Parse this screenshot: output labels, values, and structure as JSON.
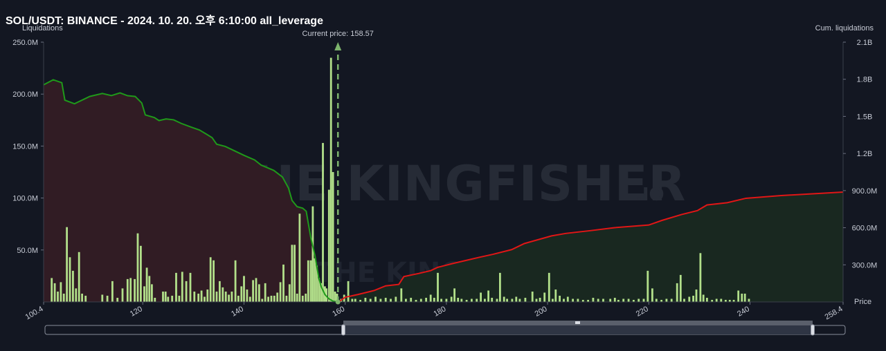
{
  "title": "SOL/USDT: BINANCE - 2024. 10. 20. 오후 6:10:00 all_leverage",
  "watermark": {
    "text": "THE KINGFISHER",
    "suffix": ".IO"
  },
  "chart_data": {
    "type": "bar",
    "left_axis_title": "Liquidations",
    "right_axis_title": "Cum. liquidations",
    "x_axis_title": "Price",
    "current_price_label": "Current price: 158.57",
    "current_price": 158.57,
    "xlim": [
      100.4,
      258.4
    ],
    "ylim_left": [
      0,
      250
    ],
    "ylim_right": [
      0,
      2100
    ],
    "left_ticks": [
      {
        "v": 50,
        "label": "50.0M"
      },
      {
        "v": 100,
        "label": "100.0M"
      },
      {
        "v": 150,
        "label": "150.0M"
      },
      {
        "v": 200,
        "label": "200.0M"
      },
      {
        "v": 250,
        "label": "250.0M"
      }
    ],
    "right_ticks": [
      {
        "v": 300,
        "label": "300.0M"
      },
      {
        "v": 600,
        "label": "600.0M"
      },
      {
        "v": 900,
        "label": "900.0M"
      },
      {
        "v": 1200,
        "label": "1.2B"
      },
      {
        "v": 1500,
        "label": "1.5B"
      },
      {
        "v": 1800,
        "label": "1.8B"
      },
      {
        "v": 2100,
        "label": "2.1B"
      }
    ],
    "x_ticks": [
      {
        "v": 100.4,
        "label": "100.4"
      },
      {
        "v": 120,
        "label": "120"
      },
      {
        "v": 140,
        "label": "140"
      },
      {
        "v": 160,
        "label": "160"
      },
      {
        "v": 180,
        "label": "180"
      },
      {
        "v": 200,
        "label": "200"
      },
      {
        "v": 220,
        "label": "220"
      },
      {
        "v": 240,
        "label": "240"
      },
      {
        "v": 258.4,
        "label": "258.4"
      }
    ],
    "bars": [
      [
        102,
        23
      ],
      [
        102.6,
        18
      ],
      [
        103.2,
        10
      ],
      [
        103.8,
        19
      ],
      [
        104.4,
        8
      ],
      [
        105,
        72
      ],
      [
        105.6,
        43
      ],
      [
        106.2,
        30
      ],
      [
        106.8,
        13
      ],
      [
        107.4,
        48
      ],
      [
        108,
        8
      ],
      [
        108.7,
        6
      ],
      [
        112,
        7
      ],
      [
        113,
        6
      ],
      [
        114,
        20
      ],
      [
        115,
        4
      ],
      [
        116,
        13
      ],
      [
        117,
        22
      ],
      [
        117.6,
        23
      ],
      [
        118.4,
        22
      ],
      [
        119,
        66
      ],
      [
        119.6,
        54
      ],
      [
        120.3,
        15
      ],
      [
        120.8,
        33
      ],
      [
        121.3,
        25
      ],
      [
        121.8,
        17
      ],
      [
        122.4,
        4
      ],
      [
        124,
        10
      ],
      [
        124.5,
        10
      ],
      [
        125,
        5
      ],
      [
        125.8,
        6
      ],
      [
        126.6,
        28
      ],
      [
        127.2,
        6
      ],
      [
        127.8,
        29
      ],
      [
        128.6,
        20
      ],
      [
        129.4,
        28
      ],
      [
        130.2,
        10
      ],
      [
        131,
        8
      ],
      [
        131.6,
        11
      ],
      [
        132.2,
        5
      ],
      [
        132.8,
        12
      ],
      [
        133.4,
        43
      ],
      [
        134,
        40
      ],
      [
        134.6,
        10
      ],
      [
        135.2,
        20
      ],
      [
        135.8,
        14
      ],
      [
        136.4,
        10
      ],
      [
        137,
        7
      ],
      [
        137.6,
        10
      ],
      [
        138.3,
        40
      ],
      [
        138.9,
        6
      ],
      [
        139.5,
        15
      ],
      [
        140,
        25
      ],
      [
        140.6,
        12
      ],
      [
        141.2,
        5
      ],
      [
        141.8,
        21
      ],
      [
        142.4,
        23
      ],
      [
        143,
        17
      ],
      [
        143.6,
        3
      ],
      [
        144.2,
        18
      ],
      [
        144.8,
        5
      ],
      [
        145.4,
        6
      ],
      [
        146,
        6
      ],
      [
        146.6,
        9
      ],
      [
        147.2,
        19
      ],
      [
        147.8,
        36
      ],
      [
        148.4,
        6
      ],
      [
        149,
        17
      ],
      [
        149.5,
        55
      ],
      [
        150,
        55
      ],
      [
        150.5,
        8
      ],
      [
        151,
        85
      ],
      [
        151.6,
        6
      ],
      [
        152.2,
        8
      ],
      [
        152.7,
        40
      ],
      [
        153.2,
        40
      ],
      [
        153.6,
        92
      ],
      [
        154,
        42
      ],
      [
        154.4,
        35
      ],
      [
        154.8,
        23
      ],
      [
        155.2,
        18
      ],
      [
        155.6,
        153
      ],
      [
        156,
        15
      ],
      [
        156.3,
        13
      ],
      [
        156.8,
        108
      ],
      [
        157.2,
        235
      ],
      [
        157.6,
        125
      ],
      [
        158,
        10
      ],
      [
        158.4,
        8
      ],
      [
        159.2,
        3
      ],
      [
        159.8,
        7
      ],
      [
        160.6,
        20
      ],
      [
        161.4,
        3
      ],
      [
        162,
        3
      ],
      [
        163,
        2
      ],
      [
        164,
        4
      ],
      [
        165,
        3
      ],
      [
        166,
        5
      ],
      [
        167,
        3
      ],
      [
        168,
        4
      ],
      [
        169,
        3
      ],
      [
        170,
        5
      ],
      [
        171.1,
        13
      ],
      [
        172,
        3
      ],
      [
        173,
        4
      ],
      [
        174,
        2
      ],
      [
        175,
        3
      ],
      [
        176,
        4
      ],
      [
        176.9,
        7
      ],
      [
        177.6,
        4
      ],
      [
        178.3,
        28
      ],
      [
        179,
        3
      ],
      [
        180,
        3
      ],
      [
        181,
        5
      ],
      [
        181.6,
        13
      ],
      [
        182.3,
        4
      ],
      [
        183,
        3
      ],
      [
        184,
        2
      ],
      [
        185,
        3
      ],
      [
        186,
        3
      ],
      [
        186.8,
        9
      ],
      [
        187.6,
        3
      ],
      [
        188.3,
        11
      ],
      [
        189,
        4
      ],
      [
        190,
        3
      ],
      [
        190.6,
        28
      ],
      [
        191.4,
        5
      ],
      [
        192,
        3
      ],
      [
        193,
        3
      ],
      [
        193.8,
        5
      ],
      [
        194.5,
        3
      ],
      [
        195.6,
        4
      ],
      [
        197,
        10
      ],
      [
        197.8,
        3
      ],
      [
        198.5,
        4
      ],
      [
        199.4,
        9
      ],
      [
        200.3,
        28
      ],
      [
        201,
        3
      ],
      [
        201.6,
        12
      ],
      [
        202.4,
        6
      ],
      [
        203.2,
        3
      ],
      [
        204,
        5
      ],
      [
        205,
        3
      ],
      [
        206,
        3
      ],
      [
        207,
        2
      ],
      [
        208,
        2
      ],
      [
        209,
        4
      ],
      [
        210,
        3
      ],
      [
        211,
        3
      ],
      [
        212.4,
        3
      ],
      [
        213.3,
        4
      ],
      [
        214,
        2
      ],
      [
        215,
        3
      ],
      [
        216,
        3
      ],
      [
        217,
        2
      ],
      [
        218,
        3
      ],
      [
        219,
        3
      ],
      [
        219.8,
        30
      ],
      [
        220.7,
        13
      ],
      [
        221.5,
        3
      ],
      [
        222.5,
        2
      ],
      [
        223.5,
        3
      ],
      [
        224.5,
        3
      ],
      [
        225.6,
        18
      ],
      [
        226.3,
        26
      ],
      [
        227,
        3
      ],
      [
        228,
        5
      ],
      [
        228.8,
        6
      ],
      [
        229.4,
        12
      ],
      [
        230.2,
        47
      ],
      [
        230.8,
        7
      ],
      [
        231.5,
        4
      ],
      [
        232.5,
        2
      ],
      [
        233.4,
        3
      ],
      [
        234.3,
        3
      ],
      [
        235.2,
        2
      ],
      [
        236,
        2
      ],
      [
        236.8,
        2
      ],
      [
        237.7,
        11
      ],
      [
        238.4,
        8
      ],
      [
        239,
        8
      ],
      [
        239.8,
        3
      ]
    ],
    "cum_short": [
      [
        100.4,
        1755
      ],
      [
        102.3,
        1796
      ],
      [
        104,
        1772
      ],
      [
        104.6,
        1631
      ],
      [
        106.5,
        1602
      ],
      [
        109.5,
        1661
      ],
      [
        112,
        1685
      ],
      [
        113.8,
        1668
      ],
      [
        115.5,
        1690
      ],
      [
        117,
        1667
      ],
      [
        118.5,
        1661
      ],
      [
        119.8,
        1608
      ],
      [
        120.5,
        1512
      ],
      [
        122.3,
        1490
      ],
      [
        123.2,
        1466
      ],
      [
        124.6,
        1479
      ],
      [
        126.1,
        1472
      ],
      [
        127.6,
        1443
      ],
      [
        129.6,
        1413
      ],
      [
        131.2,
        1390
      ],
      [
        132.6,
        1356
      ],
      [
        133.7,
        1328
      ],
      [
        134.6,
        1275
      ],
      [
        136.3,
        1257
      ],
      [
        138.1,
        1222
      ],
      [
        140,
        1185
      ],
      [
        142.1,
        1148
      ],
      [
        143.4,
        1106
      ],
      [
        145.9,
        1063
      ],
      [
        147.6,
        1010
      ],
      [
        148.8,
        920
      ],
      [
        149.5,
        820
      ],
      [
        150.5,
        770
      ],
      [
        151.6,
        758
      ],
      [
        152.3,
        733
      ],
      [
        153.2,
        520
      ],
      [
        154,
        380
      ],
      [
        154.8,
        190
      ],
      [
        155.3,
        120
      ],
      [
        156,
        60
      ],
      [
        156.8,
        25
      ],
      [
        157.6,
        6
      ],
      [
        158.57,
        0
      ]
    ],
    "cum_long": [
      [
        158.57,
        0
      ],
      [
        158.9,
        5
      ],
      [
        160,
        38
      ],
      [
        162.5,
        60
      ],
      [
        165.7,
        92
      ],
      [
        168,
        130
      ],
      [
        170.6,
        142
      ],
      [
        171.6,
        205
      ],
      [
        174.5,
        230
      ],
      [
        176.9,
        253
      ],
      [
        178.3,
        280
      ],
      [
        181.2,
        310
      ],
      [
        183.6,
        333
      ],
      [
        186.4,
        360
      ],
      [
        189.2,
        385
      ],
      [
        192.9,
        423
      ],
      [
        195.4,
        472
      ],
      [
        200.8,
        534
      ],
      [
        203.6,
        554
      ],
      [
        208.6,
        577
      ],
      [
        213.1,
        600
      ],
      [
        220,
        622
      ],
      [
        222.6,
        659
      ],
      [
        226.5,
        707
      ],
      [
        229.6,
        738
      ],
      [
        231.5,
        784
      ],
      [
        235.5,
        802
      ],
      [
        239.2,
        838
      ],
      [
        246.2,
        860
      ],
      [
        258.4,
        888
      ]
    ]
  },
  "colors": {
    "background": "#131722",
    "bar": "#b2e08a",
    "short_line": "#1f9a1a",
    "short_fill": "#311c24",
    "long_line": "#e21616",
    "long_fill": "#192820",
    "current_price_line": "#7db46c",
    "axis_text": "#c8ccd6"
  }
}
